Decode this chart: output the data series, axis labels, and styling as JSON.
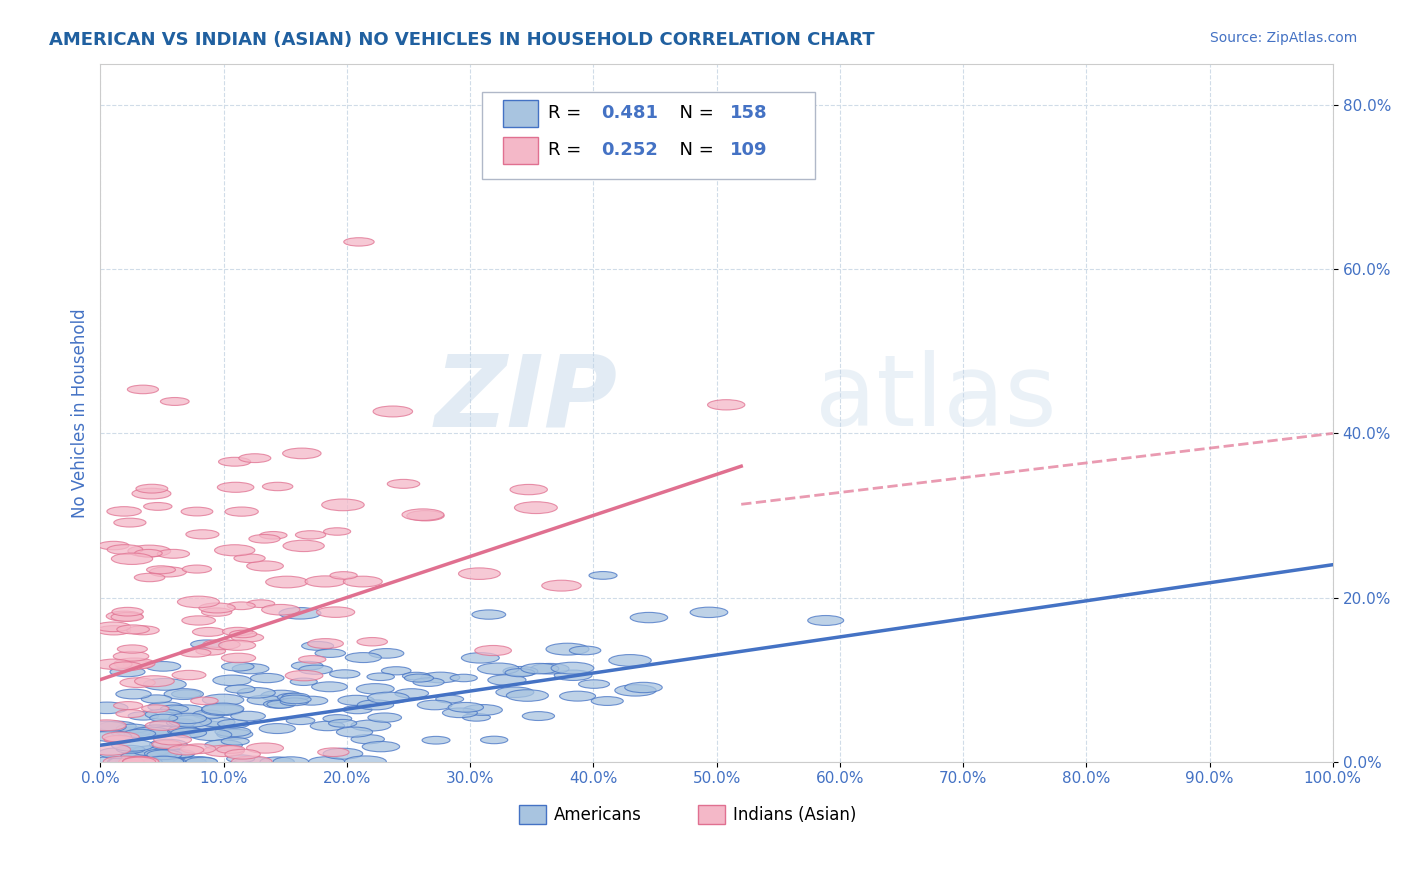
{
  "title": "AMERICAN VS INDIAN (ASIAN) NO VEHICLES IN HOUSEHOLD CORRELATION CHART",
  "source": "Source: ZipAtlas.com",
  "ylabel": "No Vehicles in Household",
  "watermark_zip": "ZIP",
  "watermark_atlas": "atlas",
  "legend_r1": "R = 0.481",
  "legend_n1": "N = 158",
  "legend_r2": "R = 0.252",
  "legend_n2": "N = 109",
  "color_american": "#a8c4e0",
  "color_indian": "#f4b8c8",
  "edge_color_american": "#4472c4",
  "edge_color_indian": "#e07090",
  "line_color_american": "#4472c4",
  "line_color_indian": "#e07090",
  "title_color": "#2060a0",
  "source_color": "#4472c4",
  "axis_label_color": "#4472c4",
  "tick_color": "#4472c4",
  "background_color": "#ffffff",
  "grid_color": "#d0dce8",
  "xlim": [
    0.0,
    1.0
  ],
  "ylim": [
    0.0,
    0.85
  ],
  "xticks": [
    0.0,
    0.1,
    0.2,
    0.3,
    0.4,
    0.5,
    0.6,
    0.7,
    0.8,
    0.9,
    1.0
  ],
  "yticks": [
    0.0,
    0.2,
    0.4,
    0.6,
    0.8
  ],
  "am_intercept": 0.02,
  "am_slope": 0.22,
  "ind_intercept": 0.1,
  "ind_slope": 0.5,
  "ind_dashed_intercept": 0.22,
  "ind_dashed_slope": 0.18,
  "n_americans": 158,
  "n_indians": 109,
  "seed": 99
}
